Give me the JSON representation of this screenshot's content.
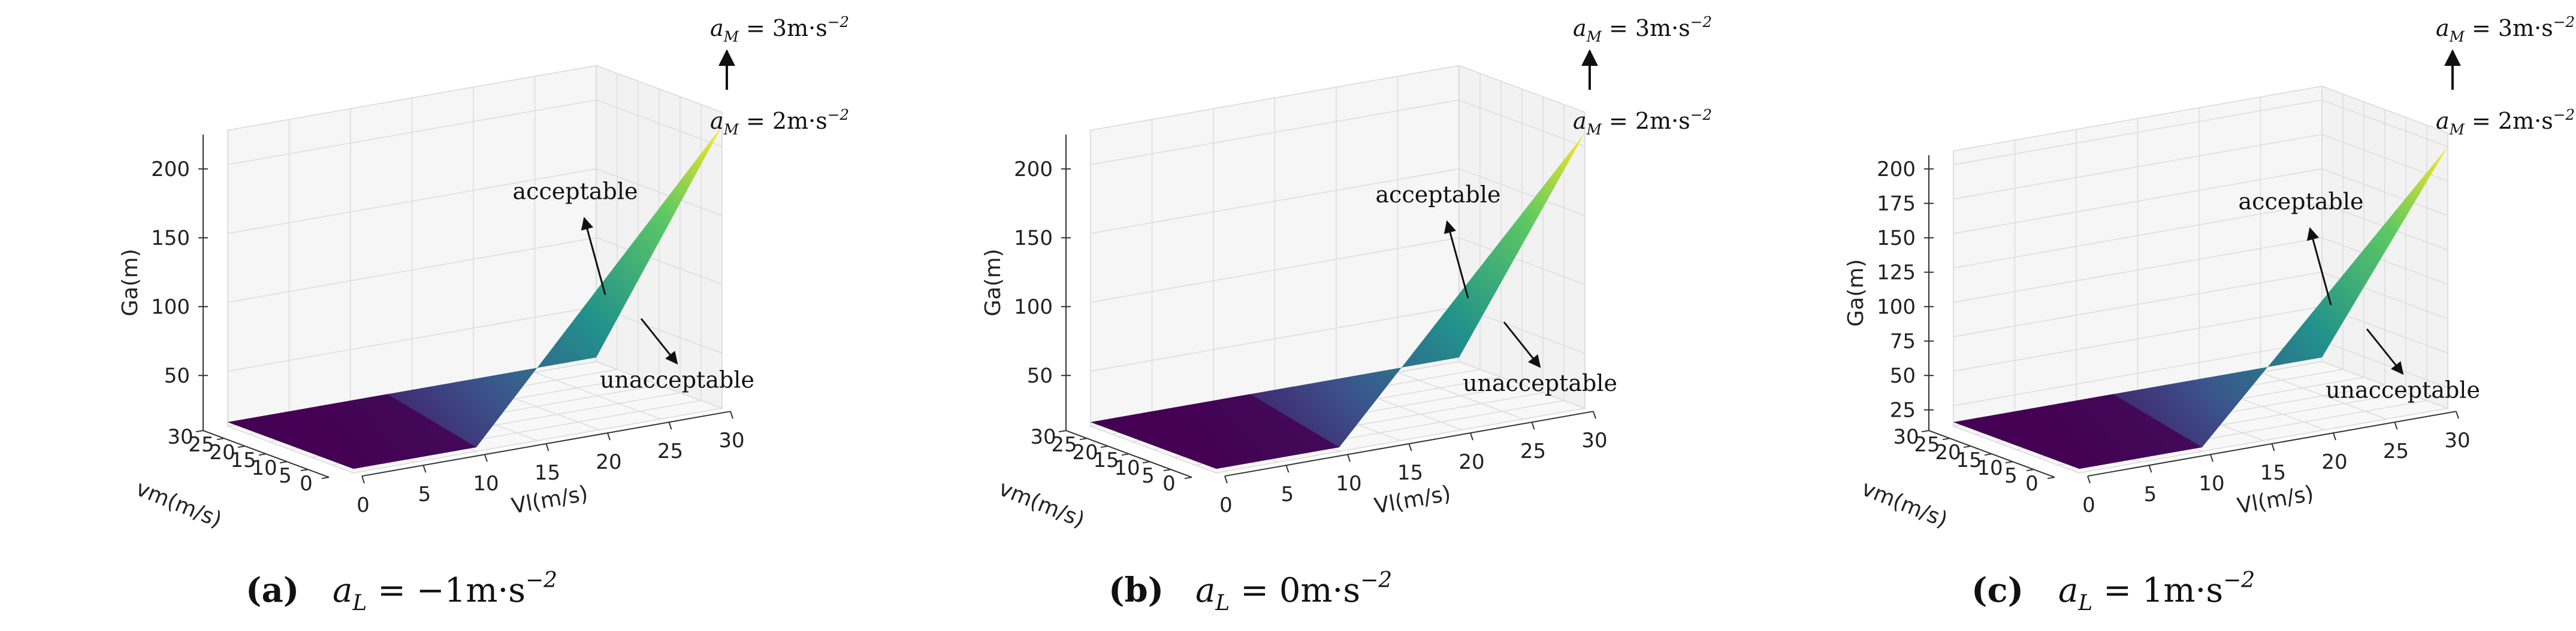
{
  "chart_data": [
    {
      "type": "surface3d",
      "panel_label": "(a)",
      "caption_math": "a_L = -1m·s^-2",
      "caption_math_parts": [
        "a",
        "L",
        " = −1m·s",
        "−2"
      ],
      "xlabel": "Vl(m/s)",
      "ylabel": "vm(m/s)",
      "zlabel": "Ga(m)",
      "x_ticks": [
        "0",
        "5",
        "10",
        "15",
        "20",
        "25",
        "30"
      ],
      "y_ticks": [
        "0",
        "5",
        "10",
        "15",
        "20",
        "25",
        "30"
      ],
      "z_ticks": [
        "50",
        "100",
        "150",
        "200"
      ],
      "xlim": [
        0,
        30
      ],
      "ylim": [
        0,
        30
      ],
      "zlim": [
        10,
        225
      ],
      "z_max": 215,
      "colormap": [
        "#440154",
        "#3b528b",
        "#21918c",
        "#5ec962",
        "#fde725"
      ],
      "annotations": {
        "acceptable": "acceptable",
        "unacceptable": "unacceptable",
        "aM_upper": [
          "a",
          "M",
          " = 3m·s",
          "−2"
        ],
        "aM_lower": [
          "a",
          "M",
          " = 2m·s",
          "−2"
        ]
      }
    },
    {
      "type": "surface3d",
      "panel_label": "(b)",
      "caption_math": "a_L = 0m·s^-2",
      "caption_math_parts": [
        "a",
        "L",
        " = 0m·s",
        "−2"
      ],
      "xlabel": "Vl(m/s)",
      "ylabel": "vm(m/s)",
      "zlabel": "Ga(m)",
      "x_ticks": [
        "0",
        "5",
        "10",
        "15",
        "20",
        "25",
        "30"
      ],
      "y_ticks": [
        "0",
        "5",
        "10",
        "15",
        "20",
        "25",
        "30"
      ],
      "z_ticks": [
        "50",
        "100",
        "150",
        "200"
      ],
      "xlim": [
        0,
        30
      ],
      "ylim": [
        0,
        30
      ],
      "zlim": [
        10,
        225
      ],
      "z_max": 210,
      "colormap": [
        "#440154",
        "#3b528b",
        "#21918c",
        "#5ec962",
        "#fde725"
      ],
      "annotations": {
        "acceptable": "acceptable",
        "unacceptable": "unacceptable",
        "aM_upper": [
          "a",
          "M",
          " = 3m·s",
          "−2"
        ],
        "aM_lower": [
          "a",
          "M",
          " = 2m·s",
          "−2"
        ]
      }
    },
    {
      "type": "surface3d",
      "panel_label": "(c)",
      "caption_math": "a_L = 1m·s^-2",
      "caption_math_parts": [
        "a",
        "L",
        " = 1m·s",
        "−2"
      ],
      "xlabel": "Vl(m/s)",
      "ylabel": "vm(m/s)",
      "zlabel": "Ga(m)",
      "x_ticks": [
        "0",
        "5",
        "10",
        "15",
        "20",
        "25",
        "30"
      ],
      "y_ticks": [
        "0",
        "5",
        "10",
        "15",
        "20",
        "25",
        "30"
      ],
      "z_ticks": [
        "25",
        "50",
        "75",
        "100",
        "125",
        "150",
        "175",
        "200"
      ],
      "xlim": [
        0,
        30
      ],
      "ylim": [
        0,
        30
      ],
      "zlim": [
        10,
        210
      ],
      "z_max": 200,
      "colormap": [
        "#440154",
        "#3b528b",
        "#21918c",
        "#5ec962",
        "#fde725"
      ],
      "annotations": {
        "acceptable": "acceptable",
        "unacceptable": "unacceptable",
        "aM_upper": [
          "a",
          "M",
          " = 3m·s",
          "−2"
        ],
        "aM_lower": [
          "a",
          "M",
          " = 2m·s",
          "−2"
        ]
      }
    }
  ]
}
